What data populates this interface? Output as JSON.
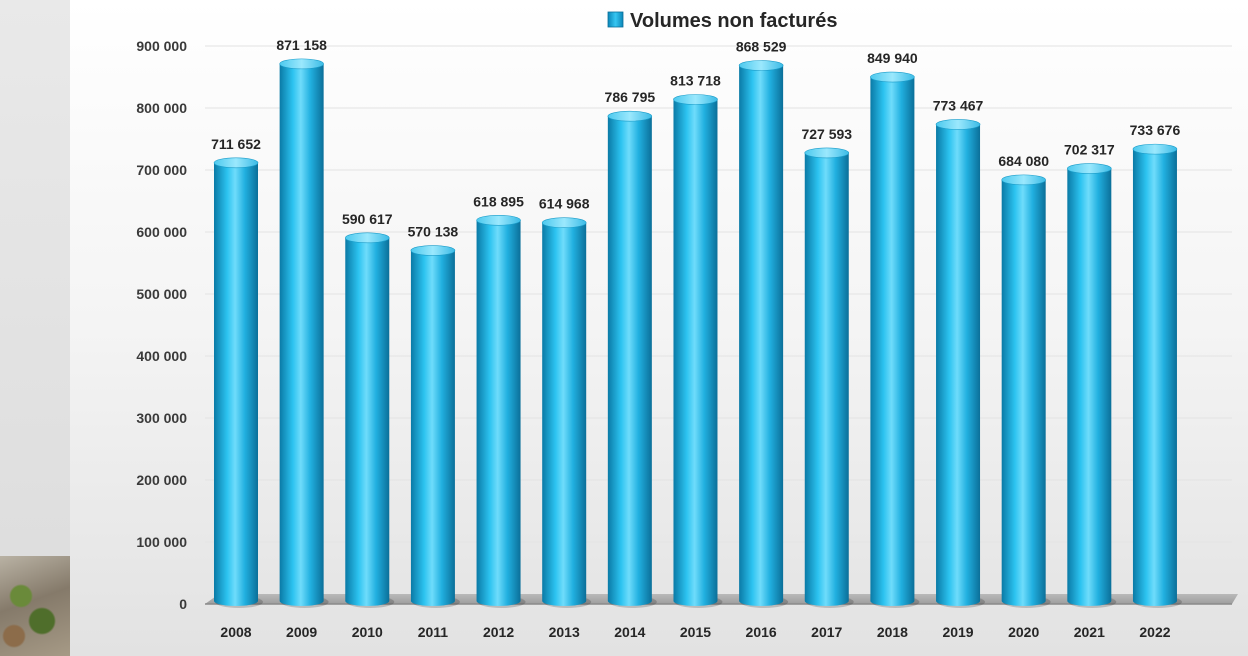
{
  "chart_data": {
    "type": "bar",
    "title": "",
    "xlabel": "",
    "ylabel": "",
    "categories": [
      "2008",
      "2009",
      "2010",
      "2011",
      "2012",
      "2013",
      "2014",
      "2015",
      "2016",
      "2017",
      "2018",
      "2019",
      "2020",
      "2021",
      "2022"
    ],
    "series": [
      {
        "name": "Volumes non facturés",
        "values": [
          711652,
          871158,
          590617,
          570138,
          618895,
          614968,
          786795,
          813718,
          868529,
          727593,
          849940,
          773467,
          684080,
          702317,
          733676
        ],
        "value_labels": [
          "711 652",
          "871 158",
          "590 617",
          "570 138",
          "618 895",
          "614 968",
          "786 795",
          "813 718",
          "868 529",
          "727 593",
          "849 940",
          "773 467",
          "684 080",
          "702 317",
          "733 676"
        ],
        "color": "#1fb3e3"
      }
    ],
    "ylim": [
      0,
      900000
    ],
    "yticks": [
      0,
      100000,
      200000,
      300000,
      400000,
      500000,
      600000,
      700000,
      800000,
      900000
    ],
    "ytick_labels": [
      "0",
      "100 000",
      "200 000",
      "300 000",
      "400 000",
      "500 000",
      "600 000",
      "700 000",
      "800 000",
      "900 000"
    ],
    "grid": true,
    "legend_position": "top-center",
    "style": "3d-cylinder"
  }
}
